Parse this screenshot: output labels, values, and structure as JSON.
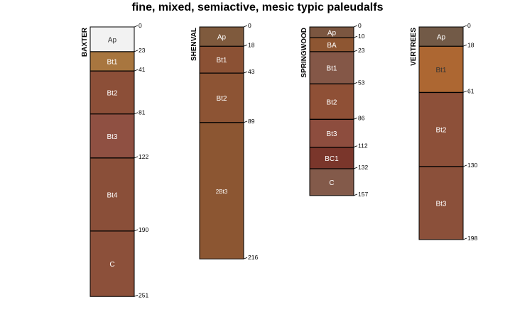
{
  "chart_data": {
    "type": "soil-profile",
    "title": "fine, mixed, semiactive, mesic typic paleudalfs",
    "depth_units": "cm",
    "profiles": [
      {
        "name": "BAXTER",
        "horizons": [
          {
            "name": "Ap",
            "top": 0,
            "bottom": 23,
            "color": "#f2f2f2",
            "text": "#333333"
          },
          {
            "name": "Bt1",
            "top": 23,
            "bottom": 41,
            "color": "#a8763f",
            "text": "#ffffff"
          },
          {
            "name": "Bt2",
            "top": 41,
            "bottom": 81,
            "color": "#8c4f38",
            "text": "#ffffff"
          },
          {
            "name": "Bt3",
            "top": 81,
            "bottom": 122,
            "color": "#8f5042",
            "text": "#ffffff"
          },
          {
            "name": "Bt4",
            "top": 122,
            "bottom": 190,
            "color": "#8a4f39",
            "text": "#ffffff"
          },
          {
            "name": "C",
            "top": 190,
            "bottom": 251,
            "color": "#8c503a",
            "text": "#ffffff"
          }
        ]
      },
      {
        "name": "SHENVAL",
        "horizons": [
          {
            "name": "Ap",
            "top": 0,
            "bottom": 18,
            "color": "#7f5a3d",
            "text": "#ffffff"
          },
          {
            "name": "Bt1",
            "top": 18,
            "bottom": 43,
            "color": "#8b5134",
            "text": "#ffffff"
          },
          {
            "name": "Bt2",
            "top": 43,
            "bottom": 89,
            "color": "#8d5434",
            "text": "#ffffff"
          },
          {
            "name": "2Bt3",
            "top": 89,
            "bottom": 216,
            "color": "#8c5632",
            "text": "#ffffff"
          }
        ]
      },
      {
        "name": "SPRINGWOOD",
        "horizons": [
          {
            "name": "Ap",
            "top": 0,
            "bottom": 10,
            "color": "#7b5640",
            "text": "#ffffff"
          },
          {
            "name": "BA",
            "top": 10,
            "bottom": 23,
            "color": "#8e5632",
            "text": "#ffffff"
          },
          {
            "name": "Bt1",
            "top": 23,
            "bottom": 53,
            "color": "#845747",
            "text": "#ffffff"
          },
          {
            "name": "Bt2",
            "top": 53,
            "bottom": 86,
            "color": "#8f5036",
            "text": "#ffffff"
          },
          {
            "name": "Bt3",
            "top": 86,
            "bottom": 112,
            "color": "#8d4d3e",
            "text": "#ffffff"
          },
          {
            "name": "BC1",
            "top": 112,
            "bottom": 132,
            "color": "#7a362b",
            "text": "#ffffff"
          },
          {
            "name": "C",
            "top": 132,
            "bottom": 157,
            "color": "#835a4a",
            "text": "#ffffff"
          }
        ]
      },
      {
        "name": "VERTREES",
        "horizons": [
          {
            "name": "Ap",
            "top": 0,
            "bottom": 18,
            "color": "#725a47",
            "text": "#ffffff"
          },
          {
            "name": "Bt1",
            "top": 18,
            "bottom": 61,
            "color": "#ad6732",
            "text": "#333333"
          },
          {
            "name": "Bt2",
            "top": 61,
            "bottom": 130,
            "color": "#8d5039",
            "text": "#ffffff"
          },
          {
            "name": "Bt3",
            "top": 130,
            "bottom": 198,
            "color": "#8b503a",
            "text": "#ffffff"
          }
        ]
      }
    ]
  }
}
